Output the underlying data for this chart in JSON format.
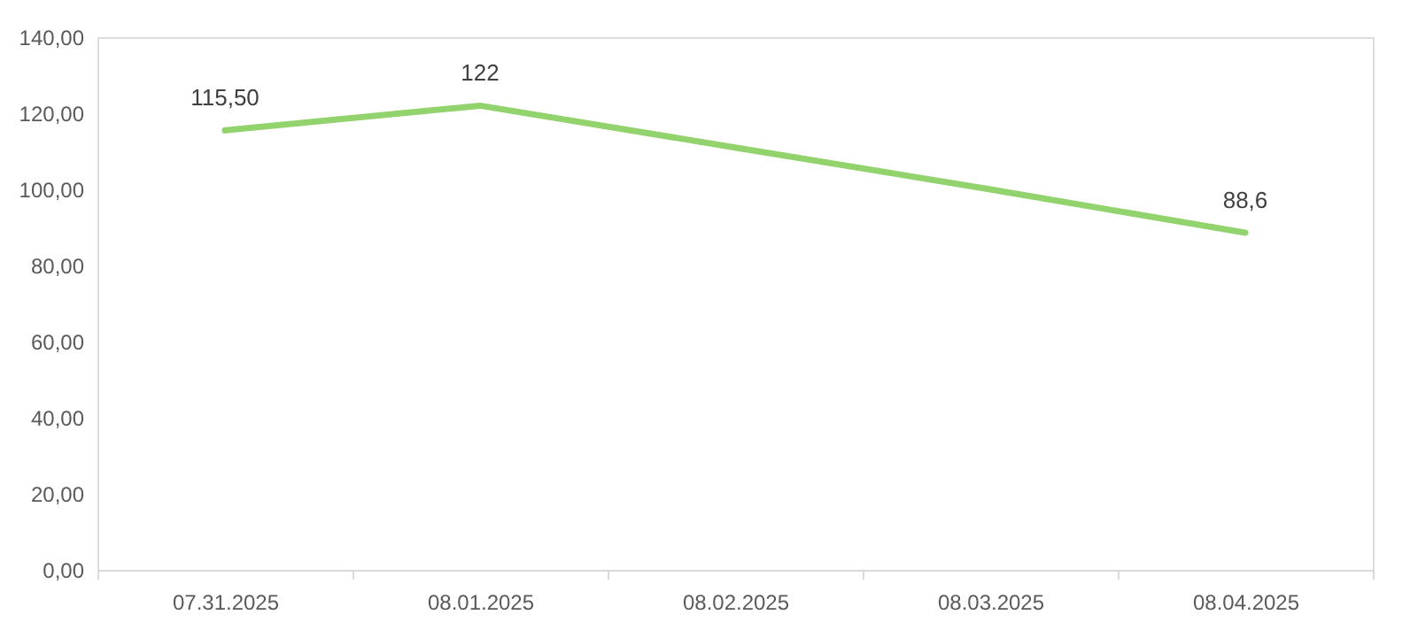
{
  "chart_data": {
    "type": "line",
    "categories": [
      "07.31.2025",
      "08.01.2025",
      "08.02.2025",
      "08.03.2025",
      "08.04.2025"
    ],
    "series": [
      {
        "color": "#92d36e",
        "values": [
          115.5,
          122,
          111,
          100,
          88.6
        ],
        "value_labels": [
          "115,50",
          "122",
          null,
          null,
          "88,6"
        ]
      }
    ],
    "ylim": [
      0,
      140
    ],
    "yticks": [
      {
        "value": 0,
        "label": "0,00"
      },
      {
        "value": 20,
        "label": "20,00"
      },
      {
        "value": 40,
        "label": "40,00"
      },
      {
        "value": 60,
        "label": "60,00"
      },
      {
        "value": 80,
        "label": "80,00"
      },
      {
        "value": 100,
        "label": "100,00"
      },
      {
        "value": 120,
        "label": "120,00"
      },
      {
        "value": 140,
        "label": "140,00"
      }
    ],
    "grid": false,
    "marker": "none",
    "line_style": "solid"
  }
}
